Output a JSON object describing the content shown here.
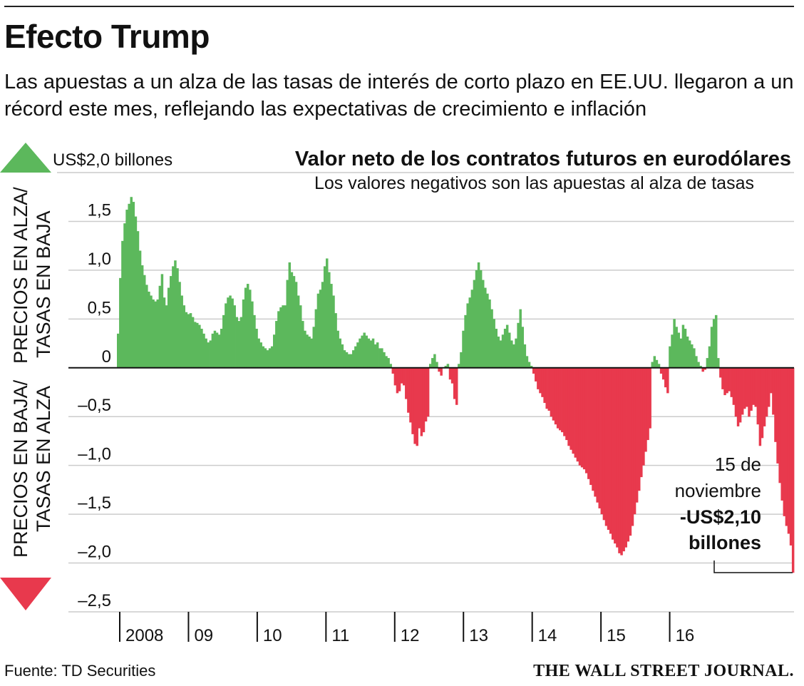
{
  "header": {
    "title": "Efecto Trump",
    "subtitle": "Las apuestas a un alza de las tasas de interés de corto plazo en EE.UU. llegaron a un récord este mes, reflejando las expectativas de crecimiento e inflación"
  },
  "chart_data": {
    "type": "bar",
    "title": "Valor neto de los contratos futuros en eurodólares",
    "subtitle": "Los valores negativos son las apuestas al alza de tasas",
    "unit_label": "US$2,0 billones",
    "ylim": [
      -2.5,
      2.0
    ],
    "yticks": [
      {
        "value": 1.5,
        "label": "1,5"
      },
      {
        "value": 1.0,
        "label": "1,0"
      },
      {
        "value": 0.5,
        "label": "0,5"
      },
      {
        "value": 0,
        "label": "0"
      },
      {
        "value": -0.5,
        "label": "–0,5"
      },
      {
        "value": -1.0,
        "label": "–1,0"
      },
      {
        "value": -1.5,
        "label": "–1,5"
      },
      {
        "value": -2.0,
        "label": "–2,0"
      },
      {
        "value": -2.5,
        "label": "–2,5"
      }
    ],
    "xticks": [
      "2008",
      "09",
      "10",
      "11",
      "12",
      "13",
      "14",
      "15",
      "16"
    ],
    "up_label": [
      "PRECIOS EN ALZA/",
      "TASAS EN BAJA"
    ],
    "down_label": [
      "PRECIOS EN BAJA/",
      "TASAS EN ALZA"
    ],
    "grid": true,
    "colors": {
      "positive": "#5cb85c",
      "negative": "#e8394d",
      "axis": "#111111",
      "grid": "#cccccc"
    },
    "annotation": {
      "line1": "15 de",
      "line2": "noviembre",
      "value": "-US$2,10",
      "unit": "billones",
      "date": "2016-11-15",
      "y": -2.1
    },
    "series": [
      {
        "start": "2008-01",
        "frequency": "weekly",
        "values": [
          0.35,
          0.92,
          1.3,
          1.48,
          1.62,
          1.68,
          1.75,
          1.7,
          1.55,
          1.4,
          1.2,
          1.05,
          0.95,
          0.85,
          0.78,
          0.74,
          0.7,
          0.68,
          0.7,
          0.84,
          0.96,
          0.72,
          0.64,
          0.82,
          0.94,
          1.04,
          1.1,
          1.02,
          0.88,
          0.74,
          0.64,
          0.57,
          0.55,
          0.56,
          0.52,
          0.47,
          0.46,
          0.44,
          0.4,
          0.35,
          0.3,
          0.26,
          0.28,
          0.35,
          0.38,
          0.36,
          0.34,
          0.4,
          0.54,
          0.66,
          0.72,
          0.74,
          0.71,
          0.64,
          0.52,
          0.48,
          0.52,
          0.7,
          0.82,
          0.86,
          0.8,
          0.68,
          0.54,
          0.4,
          0.3,
          0.26,
          0.22,
          0.2,
          0.18,
          0.2,
          0.22,
          0.34,
          0.48,
          0.58,
          0.62,
          0.64,
          0.64,
          0.9,
          1.08,
          0.98,
          0.94,
          0.88,
          0.74,
          0.64,
          0.48,
          0.38,
          0.34,
          0.32,
          0.3,
          0.42,
          0.6,
          0.76,
          0.8,
          0.88,
          1.04,
          1.12,
          0.98,
          0.86,
          0.74,
          0.56,
          0.38,
          0.3,
          0.24,
          0.18,
          0.16,
          0.14,
          0.14,
          0.18,
          0.22,
          0.26,
          0.3,
          0.33,
          0.36,
          0.33,
          0.3,
          0.28,
          0.3,
          0.24,
          0.26,
          0.2,
          0.2,
          0.16,
          0.12,
          0.1,
          0.04,
          -0.06,
          -0.18,
          -0.26,
          -0.24,
          -0.16,
          -0.18,
          -0.32,
          -0.46,
          -0.56,
          -0.68,
          -0.78,
          -0.8,
          -0.62,
          -0.7,
          -0.66,
          -0.55,
          -0.5,
          0.04,
          0.1,
          0.14,
          0.06,
          -0.04,
          -0.08,
          0,
          0.02,
          0.04,
          -0.12,
          -0.16,
          -0.32,
          -0.38,
          0.04,
          0.16,
          0.38,
          0.54,
          0.66,
          0.72,
          0.8,
          0.9,
          1.0,
          1.08,
          1.0,
          0.9,
          0.82,
          0.76,
          0.7,
          0.6,
          0.5,
          0.4,
          0.32,
          0.28,
          0.34,
          0.4,
          0.44,
          0.36,
          0.28,
          0.24,
          0.3,
          0.46,
          0.6,
          0.42,
          0.24,
          0.12,
          0.06,
          0.02,
          -0.06,
          -0.14,
          -0.22,
          -0.26,
          -0.3,
          -0.36,
          -0.42,
          -0.44,
          -0.5,
          -0.54,
          -0.58,
          -0.62,
          -0.64,
          -0.66,
          -0.7,
          -0.74,
          -0.8,
          -0.84,
          -0.88,
          -0.92,
          -0.96,
          -1.0,
          -1.02,
          -1.04,
          -1.08,
          -1.14,
          -1.2,
          -1.26,
          -1.32,
          -1.38,
          -1.44,
          -1.5,
          -1.56,
          -1.62,
          -1.66,
          -1.7,
          -1.76,
          -1.8,
          -1.84,
          -1.9,
          -1.92,
          -1.88,
          -1.84,
          -1.78,
          -1.72,
          -1.62,
          -1.5,
          -1.38,
          -1.26,
          -1.12,
          -1.0,
          -0.86,
          -0.74,
          -0.62,
          0.06,
          0.12,
          0.08,
          0.04,
          -0.06,
          -0.12,
          -0.2,
          -0.26,
          0.22,
          0.34,
          0.5,
          0.42,
          0.36,
          0.3,
          0.44,
          0.4,
          0.32,
          0.28,
          0.24,
          0.2,
          0.12,
          0.06,
          0.02,
          -0.04,
          -0.02,
          0.1,
          0.22,
          0.42,
          0.5,
          0.54,
          0.1,
          -0.1,
          -0.22,
          -0.28,
          -0.26,
          -0.24,
          -0.3,
          -0.38,
          -0.5,
          -0.6,
          -0.56,
          -0.48,
          -0.42,
          -0.4,
          -0.5,
          -0.44,
          -0.38,
          -0.4,
          -0.58,
          -0.8,
          -0.72,
          -0.6,
          -0.5,
          -0.4,
          -0.26,
          -0.48,
          -0.76,
          -0.98,
          -1.18,
          -1.36,
          -1.52,
          -1.62,
          -1.7,
          -1.82,
          -2.1
        ]
      }
    ]
  },
  "footer": {
    "source": "Fuente: TD Securities",
    "brand": "THE WALL STREET JOURNAL."
  }
}
